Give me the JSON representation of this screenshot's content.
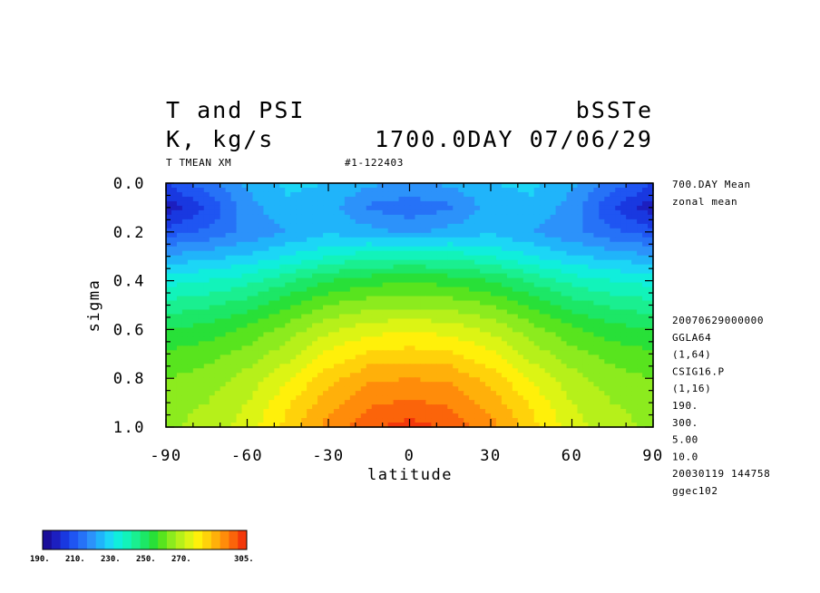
{
  "header": {
    "title_left_1": "T and PSI",
    "title_left_2": "K, kg/s",
    "title_right_1": "bSSTe",
    "title_right_2": "1700.0DAY 07/06/29",
    "sub_left": "T TMEAN XM",
    "sub_center": "#1-122403"
  },
  "side_info": {
    "top": [
      "700.DAY Mean",
      "zonal mean"
    ],
    "bottom": [
      "20070629000000",
      "GGLA64",
      "(1,64)",
      "CSIG16.P",
      "(1,16)",
      "190.",
      "300.",
      "5.00",
      "10.0",
      "20030119 144758",
      "ggec102"
    ]
  },
  "colorbar": {
    "colors": [
      "#1a0e9a",
      "#1c1fc0",
      "#1938e0",
      "#1f55f2",
      "#2672f7",
      "#2c92fa",
      "#20b4fa",
      "#1cd6f6",
      "#10eedc",
      "#12f3ba",
      "#1aef90",
      "#1ce766",
      "#28e038",
      "#58e41e",
      "#8ceb1e",
      "#b6f01a",
      "#dcf414",
      "#fff00a",
      "#ffd20a",
      "#ffb00a",
      "#ff8c0a",
      "#fb640a",
      "#f3380a"
    ],
    "labels": [
      "190.",
      "210.",
      "230.",
      "250.",
      "270.",
      "305."
    ]
  },
  "chart_data": {
    "type": "heatmap",
    "title": "T and PSI",
    "units": "K, kg/s",
    "xlabel": "latitude",
    "ylabel": "sigma",
    "xlim": [
      -90,
      90
    ],
    "ylim": [
      1.0,
      0.0
    ],
    "xticks": [
      "-90",
      "-60",
      "-30",
      "0",
      "30",
      "60",
      "90"
    ],
    "yticks": [
      "0.0",
      "0.2",
      "0.4",
      "0.6",
      "0.8",
      "1.0"
    ],
    "x": [
      -90,
      -75,
      -60,
      -45,
      -30,
      -15,
      0,
      15,
      30,
      45,
      60,
      75,
      90
    ],
    "y": [
      0.0,
      0.1,
      0.2,
      0.3,
      0.4,
      0.5,
      0.6,
      0.7,
      0.8,
      0.9,
      1.0
    ],
    "z": [
      [
        205,
        213,
        221,
        226,
        225,
        221,
        219,
        221,
        225,
        226,
        221,
        213,
        205
      ],
      [
        197,
        205,
        218,
        224,
        222,
        214,
        212,
        214,
        222,
        224,
        218,
        205,
        197
      ],
      [
        207,
        211,
        216,
        220,
        224,
        222,
        219,
        222,
        224,
        220,
        216,
        211,
        207
      ],
      [
        221,
        223,
        226,
        230,
        235,
        238,
        239,
        238,
        235,
        230,
        226,
        223,
        221
      ],
      [
        233,
        235,
        238,
        244,
        250,
        253,
        254,
        253,
        250,
        244,
        238,
        235,
        233
      ],
      [
        242,
        244,
        248,
        254,
        260,
        263,
        264,
        263,
        260,
        254,
        248,
        244,
        242
      ],
      [
        250,
        252,
        256,
        262,
        269,
        273,
        274,
        273,
        269,
        262,
        256,
        252,
        250
      ],
      [
        256,
        258,
        262,
        268,
        276,
        281,
        282,
        281,
        276,
        268,
        262,
        258,
        256
      ],
      [
        260,
        262,
        267,
        274,
        283,
        289,
        290,
        289,
        283,
        274,
        267,
        262,
        260
      ],
      [
        263,
        265,
        270,
        279,
        288,
        294,
        296,
        294,
        288,
        279,
        270,
        265,
        263
      ],
      [
        264,
        267,
        272,
        282,
        292,
        299,
        302,
        299,
        292,
        282,
        272,
        267,
        264
      ]
    ],
    "levels": [
      190,
      305
    ],
    "grid": false,
    "legend": "colorbar bottom-left"
  }
}
